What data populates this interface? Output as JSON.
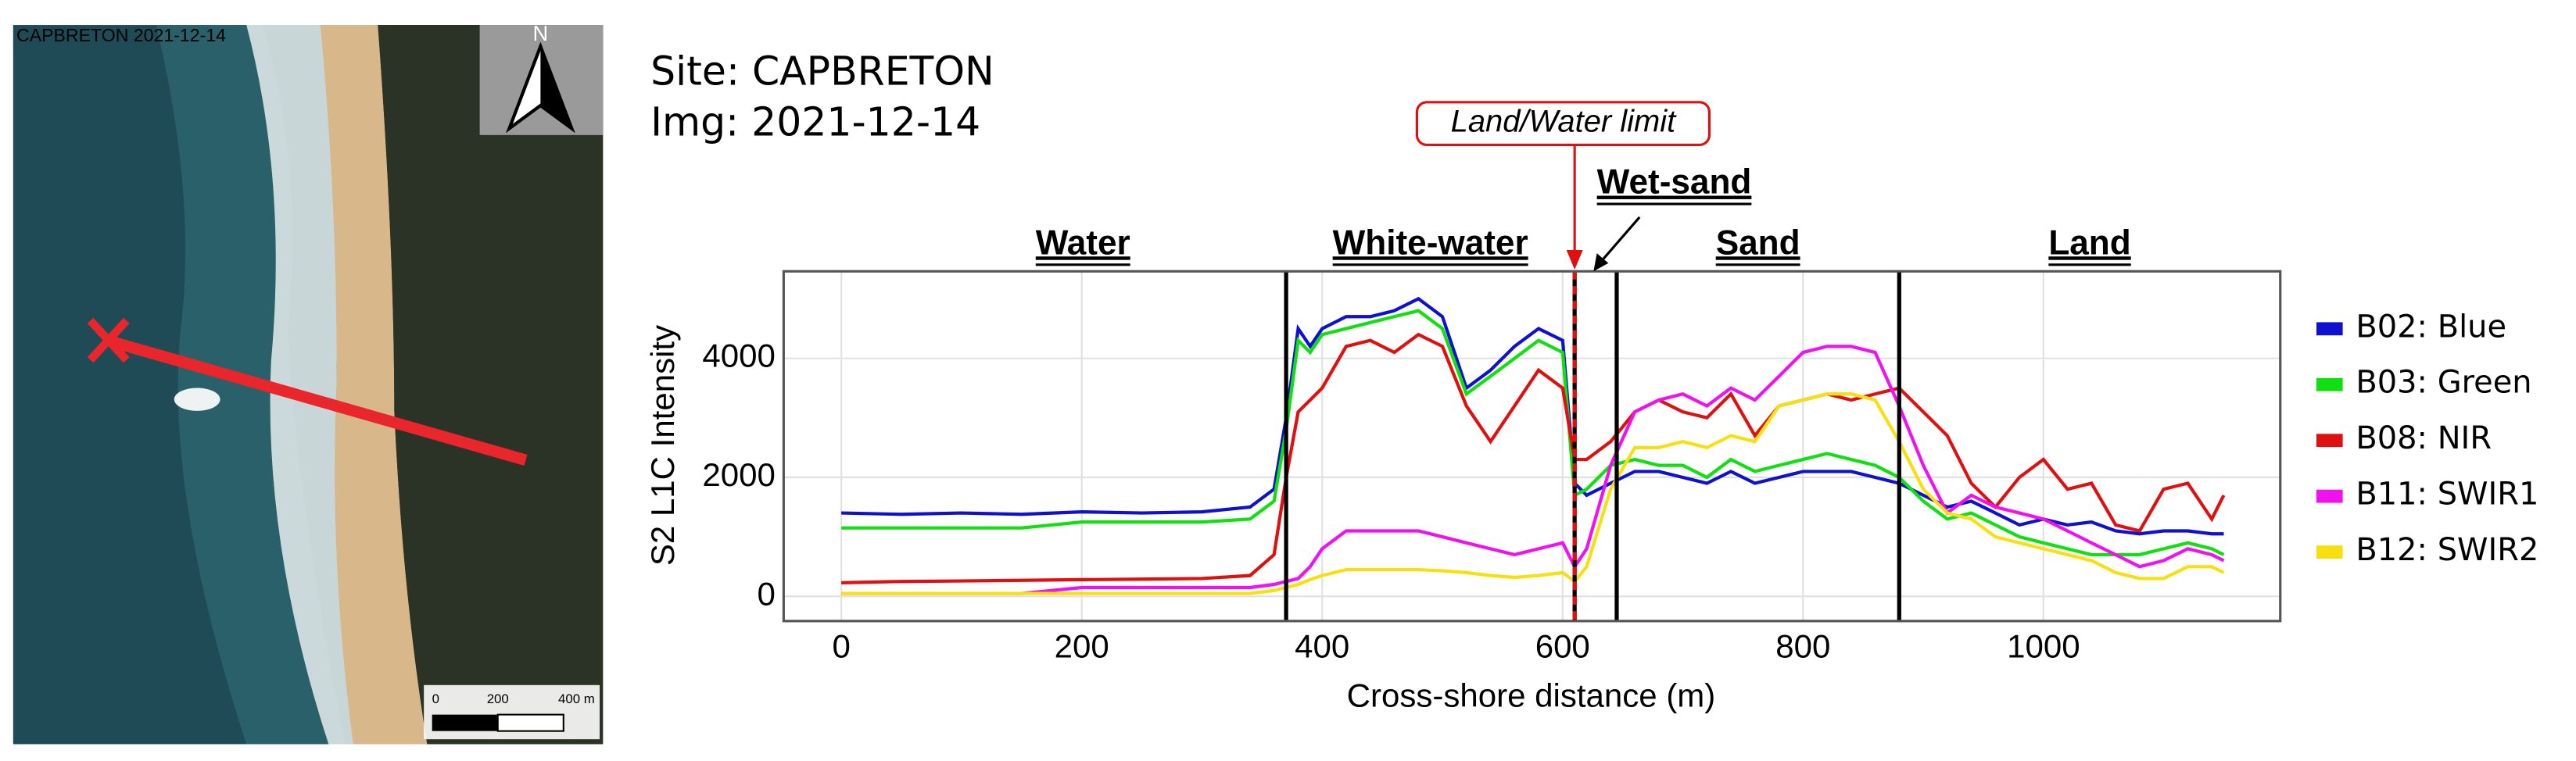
{
  "map": {
    "caption": "CAPBRETON  2021-12-14",
    "north": "N",
    "scale_labels": [
      "0",
      "200",
      "400 m"
    ]
  },
  "chart_data": {
    "type": "line",
    "site": "Site: CAPBRETON",
    "img": "Img: 2021-12-14",
    "xlabel": "Cross-shore distance (m)",
    "ylabel": "S2 L1C Intensity",
    "xlim": [
      -48,
      1197
    ],
    "ylim": [
      -414,
      5462
    ],
    "xticks": [
      0,
      200,
      400,
      600,
      800,
      1000
    ],
    "yticks": [
      0,
      2000,
      4000
    ],
    "grid": true,
    "zone_labels": [
      "Water",
      "White-water",
      "Wet-sand",
      "Sand",
      "Land"
    ],
    "boundaries": [
      370,
      645,
      880
    ],
    "limit_line": 610,
    "limit_label": "Land/Water limit",
    "legend": "right",
    "x": [
      0,
      50,
      100,
      150,
      200,
      250,
      300,
      340,
      360,
      370,
      380,
      390,
      400,
      420,
      440,
      460,
      480,
      500,
      520,
      540,
      560,
      580,
      600,
      610,
      620,
      640,
      660,
      680,
      700,
      720,
      740,
      760,
      780,
      800,
      820,
      840,
      860,
      880,
      900,
      920,
      940,
      960,
      980,
      1000,
      1020,
      1040,
      1060,
      1080,
      1100,
      1120,
      1140,
      1150
    ],
    "series": [
      {
        "name": "B02: Blue",
        "color": "#1010d0",
        "values": [
          1400,
          1380,
          1400,
          1380,
          1420,
          1400,
          1420,
          1500,
          1800,
          3000,
          4500,
          4200,
          4500,
          4700,
          4700,
          4800,
          5000,
          4700,
          3500,
          3800,
          4200,
          4500,
          4300,
          1900,
          1700,
          1900,
          2100,
          2100,
          2000,
          1900,
          2100,
          1900,
          2000,
          2100,
          2100,
          2100,
          2000,
          1900,
          1700,
          1500,
          1600,
          1400,
          1200,
          1300,
          1200,
          1250,
          1100,
          1050,
          1100,
          1100,
          1050,
          1050
        ]
      },
      {
        "name": "B03: Green",
        "color": "#10e010",
        "values": [
          1150,
          1150,
          1150,
          1150,
          1250,
          1250,
          1250,
          1300,
          1600,
          2800,
          4300,
          4100,
          4400,
          4500,
          4600,
          4700,
          4800,
          4500,
          3400,
          3700,
          4000,
          4300,
          4100,
          1700,
          1800,
          2200,
          2300,
          2200,
          2200,
          2000,
          2300,
          2100,
          2200,
          2300,
          2400,
          2300,
          2200,
          2000,
          1600,
          1300,
          1400,
          1200,
          1000,
          900,
          800,
          700,
          700,
          700,
          800,
          900,
          800,
          700
        ]
      },
      {
        "name": "B08: NIR",
        "color": "#e01010",
        "values": [
          230,
          250,
          260,
          270,
          280,
          290,
          300,
          350,
          700,
          2000,
          3100,
          3300,
          3500,
          4200,
          4300,
          4100,
          4400,
          4200,
          3200,
          2600,
          3200,
          3800,
          3500,
          2300,
          2300,
          2600,
          3100,
          3300,
          3100,
          3000,
          3400,
          2700,
          3200,
          3300,
          3400,
          3300,
          3400,
          3500,
          3100,
          2700,
          1900,
          1500,
          2000,
          2300,
          1800,
          1900,
          1200,
          1100,
          1800,
          1900,
          1300,
          1700
        ]
      },
      {
        "name": "B11: SWIR1",
        "color": "#f010f0",
        "values": [
          50,
          50,
          50,
          50,
          150,
          150,
          150,
          150,
          200,
          250,
          300,
          500,
          800,
          1100,
          1100,
          1100,
          1100,
          1000,
          900,
          800,
          700,
          800,
          900,
          500,
          800,
          2200,
          3100,
          3300,
          3400,
          3200,
          3500,
          3300,
          3700,
          4100,
          4200,
          4200,
          4100,
          3200,
          2200,
          1400,
          1700,
          1500,
          1400,
          1300,
          1100,
          900,
          700,
          500,
          600,
          800,
          700,
          600
        ]
      },
      {
        "name": "B12: SWIR2",
        "color": "#f8e010",
        "values": [
          50,
          50,
          50,
          50,
          50,
          50,
          50,
          50,
          100,
          150,
          200,
          280,
          350,
          450,
          450,
          450,
          450,
          430,
          400,
          350,
          320,
          350,
          400,
          250,
          500,
          1800,
          2500,
          2500,
          2600,
          2500,
          2700,
          2600,
          3200,
          3300,
          3400,
          3400,
          3300,
          2600,
          1800,
          1400,
          1300,
          1000,
          900,
          800,
          700,
          600,
          400,
          300,
          300,
          500,
          500,
          400
        ]
      }
    ]
  }
}
